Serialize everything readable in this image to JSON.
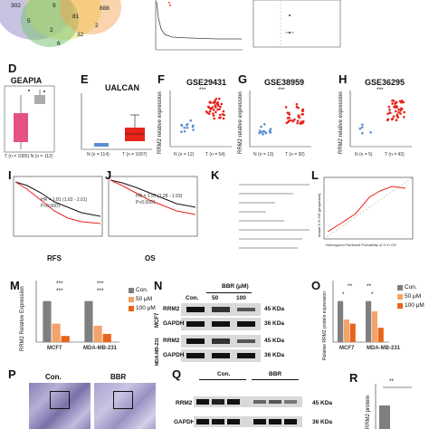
{
  "venn": {
    "values": [
      "302",
      "9",
      "888",
      "81",
      "5",
      "2",
      "32",
      "2",
      "6"
    ]
  },
  "panels": {
    "D": {
      "label": "D",
      "title": "GEAPIA",
      "xlabel": "T (n = 1085) N (n = 112)"
    },
    "E": {
      "label": "E",
      "title": "UALCAN",
      "x_n": "N (n = 114)",
      "x_t": "T (n = 1097)"
    },
    "F": {
      "label": "F",
      "title": "GSE29431",
      "ylabel": "RRM2 relative expression",
      "sig": "***",
      "x_n": "N (n = 12)",
      "x_t": "T (n = 54)"
    },
    "G": {
      "label": "G",
      "title": "GSE38959",
      "ylabel": "RRM2 relative expression",
      "sig": "***",
      "x_n": "N (n = 13)",
      "x_t": "T (n = 30)"
    },
    "H": {
      "label": "H",
      "title": "GSE36295",
      "ylabel": "RRM2 relative expression",
      "sig": "***",
      "x_n": "N (n = 5)",
      "x_t": "T (n = 43)"
    },
    "I": {
      "label": "I",
      "caption": "RFS",
      "hr": "HR = 1.81 (1.63 - 2.01)",
      "p": "P<0.0001"
    },
    "J": {
      "label": "J",
      "caption": "OS",
      "hr": "HR = 1.57 (1.28 - 1.93)",
      "p": "P<0.0001"
    },
    "K": {
      "label": "K"
    },
    "L": {
      "label": "L",
      "xlabel": "Nomogram-Predicted Probability of 3-Yr OS",
      "ylabel": "Actual 3-Yr OS (proportion)"
    },
    "M": {
      "label": "M",
      "ylabel": "RRM2 Relative Expression",
      "legend": [
        "Con.",
        "50 μM",
        "100 μM"
      ],
      "categories": [
        "MCF7",
        "MDA-MB-231"
      ],
      "sig": [
        "***",
        "***",
        "***",
        "***"
      ]
    },
    "N": {
      "label": "N",
      "bbr": "BBR (μM)",
      "lanes": [
        "Con.",
        "50",
        "100"
      ],
      "rows": [
        {
          "cell": "MCF7",
          "band": "RRM2",
          "kda": "45 KDa"
        },
        {
          "cell": "MCF7",
          "band": "GAPDH",
          "kda": "36 KDa"
        },
        {
          "cell": "MDA-MB-231",
          "band": "RRM2",
          "kda": "45 KDa"
        },
        {
          "cell": "MDA-MB-231",
          "band": "GAPDH",
          "kda": "36 KDa"
        }
      ]
    },
    "O": {
      "label": "O",
      "ylabel": "Relative RRM2 protein expression",
      "legend": [
        "Con.",
        "50 μM",
        "100 μM"
      ],
      "categories": [
        "MCF7",
        "MDA-MB-231"
      ],
      "sig": [
        "*",
        "**",
        "**",
        "*"
      ]
    },
    "P": {
      "label": "P",
      "con": "Con.",
      "bbr": "BBR"
    },
    "Q": {
      "label": "Q",
      "con": "Con.",
      "bbr": "BBR",
      "rrm2": "RRM2",
      "gapdh": "GAPDH",
      "kda1": "45 KDa",
      "kda2": "36 KDa"
    },
    "R": {
      "label": "R",
      "sig": "**",
      "ylabel": "RRM2 protein"
    }
  },
  "colors": {
    "con": "#7f7f7f",
    "d50": "#f4a36b",
    "d100": "#e8641a",
    "tumor": "#e8231a",
    "normal": "#5b8fd0"
  },
  "chart_data": [
    {
      "type": "bar",
      "title": "",
      "ylabel": "RRM2 Relative Expression",
      "categories": [
        "MCF7",
        "MDA-MB-231"
      ],
      "ylim": [
        0,
        1.5
      ],
      "series": [
        {
          "name": "Con.",
          "values": [
            1.0,
            1.0
          ]
        },
        {
          "name": "50 μM",
          "values": [
            0.45,
            0.4
          ]
        },
        {
          "name": "100 μM",
          "values": [
            0.15,
            0.2
          ]
        }
      ]
    },
    {
      "type": "bar",
      "title": "",
      "ylabel": "Relative RRM2 protein expression",
      "categories": [
        "MCF7",
        "MDA-MB-231"
      ],
      "ylim": [
        0,
        1.5
      ],
      "series": [
        {
          "name": "Con.",
          "values": [
            1.0,
            1.0
          ]
        },
        {
          "name": "50 μM",
          "values": [
            0.55,
            0.75
          ]
        },
        {
          "name": "100 μM",
          "values": [
            0.45,
            0.35
          ]
        }
      ]
    }
  ]
}
